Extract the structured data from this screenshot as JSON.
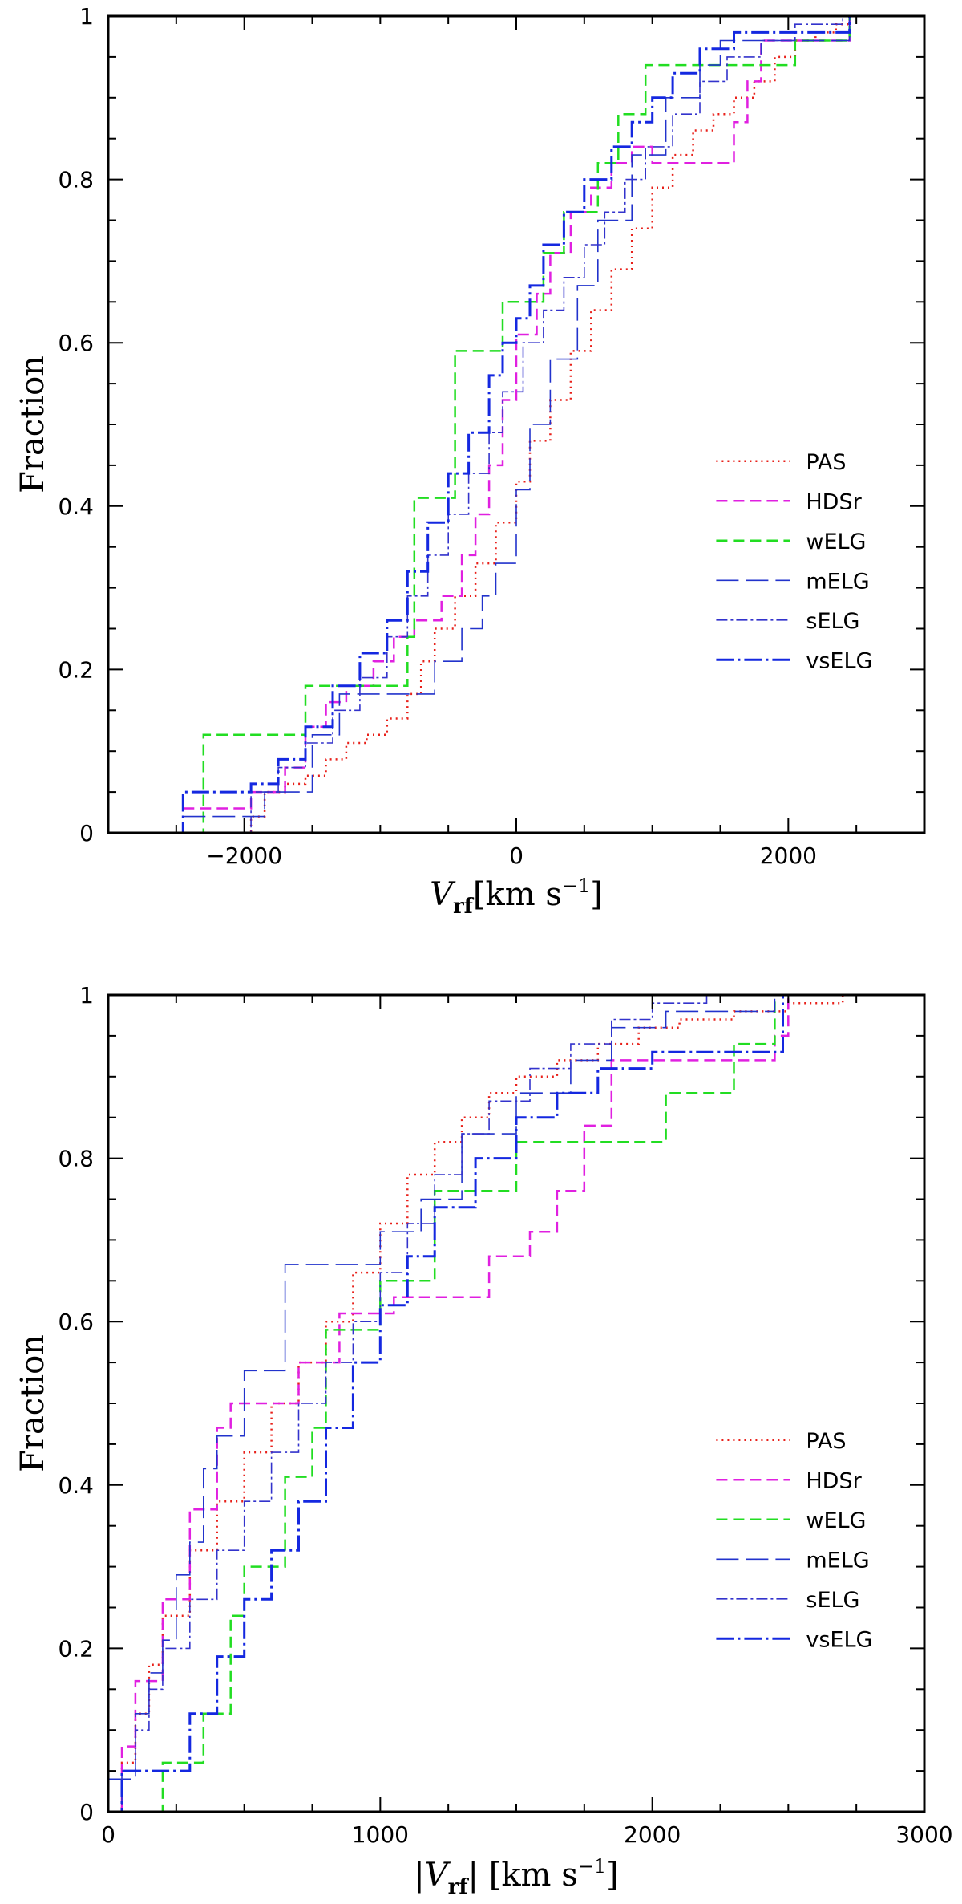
{
  "chart_data": [
    {
      "type": "line",
      "subtype": "cumulative-step",
      "title": "",
      "xlabel": {
        "main": "V",
        "sub": "rf",
        "unit": "[km s",
        "sup": "−1",
        "close": "]"
      },
      "ylabel": "Fraction",
      "xlim": [
        -3000,
        3000
      ],
      "ylim": [
        0,
        1
      ],
      "xticks": [
        {
          "v": -2000,
          "label": "−2000"
        },
        {
          "v": 0,
          "label": "0"
        },
        {
          "v": 2000,
          "label": "2000"
        }
      ],
      "yticks": [
        {
          "v": 0,
          "label": "0"
        },
        {
          "v": 0.2,
          "label": "0.2"
        },
        {
          "v": 0.4,
          "label": "0.4"
        },
        {
          "v": 0.6,
          "label": "0.6"
        },
        {
          "v": 0.8,
          "label": "0.8"
        },
        {
          "v": 1,
          "label": "1"
        }
      ],
      "legend_position": "right-middle",
      "series": [
        {
          "name": "PAS",
          "color": "#e8201a",
          "dash": "2,5",
          "width": 2.5,
          "x": [
            -2150,
            -1950,
            -1850,
            -1700,
            -1550,
            -1400,
            -1250,
            -1100,
            -950,
            -800,
            -700,
            -600,
            -450,
            -300,
            -150,
            0,
            100,
            250,
            400,
            550,
            700,
            850,
            1000,
            1150,
            1300,
            1450,
            1600,
            1750,
            1900,
            2050,
            2200,
            2350,
            2450
          ],
          "y": [
            0.0,
            0.02,
            0.05,
            0.06,
            0.07,
            0.09,
            0.11,
            0.12,
            0.14,
            0.17,
            0.21,
            0.25,
            0.29,
            0.33,
            0.38,
            0.43,
            0.48,
            0.53,
            0.59,
            0.64,
            0.69,
            0.74,
            0.79,
            0.83,
            0.86,
            0.88,
            0.9,
            0.92,
            0.95,
            0.97,
            0.98,
            0.99,
            1.0
          ]
        },
        {
          "name": "HDSr",
          "color": "#e020e0",
          "dash": "14,7",
          "width": 2.5,
          "x": [
            -2450,
            -1950,
            -1700,
            -1550,
            -1400,
            -1250,
            -1050,
            -900,
            -750,
            -550,
            -400,
            -300,
            -200,
            -100,
            0,
            150,
            250,
            400,
            550,
            700,
            850,
            1000,
            1600,
            1700,
            1800,
            2450
          ],
          "y": [
            0.03,
            0.05,
            0.08,
            0.13,
            0.16,
            0.18,
            0.21,
            0.24,
            0.26,
            0.29,
            0.34,
            0.39,
            0.45,
            0.53,
            0.61,
            0.66,
            0.71,
            0.76,
            0.79,
            0.82,
            0.84,
            0.82,
            0.87,
            0.92,
            0.97,
            1.0
          ]
        },
        {
          "name": "wELG",
          "color": "#22dd22",
          "dash": "14,7",
          "width": 2.5,
          "x": [
            -2350,
            -2300,
            -1550,
            -800,
            -750,
            -450,
            -100,
            200,
            350,
            600,
            750,
            950,
            1350,
            1700,
            2050,
            2450
          ],
          "y": [
            0.0,
            0.12,
            0.18,
            0.24,
            0.41,
            0.59,
            0.65,
            0.71,
            0.76,
            0.82,
            0.88,
            0.94,
            0.94,
            0.94,
            0.97,
            1.0
          ]
        },
        {
          "name": "mELG",
          "color": "#2233cc",
          "dash": "28,9",
          "width": 1.6,
          "x": [
            -2450,
            -1850,
            -1500,
            -1300,
            -800,
            -600,
            -400,
            -250,
            -150,
            0,
            100,
            250,
            450,
            600,
            850,
            1100,
            1350,
            1500,
            2450
          ],
          "y": [
            0.02,
            0.05,
            0.12,
            0.17,
            0.17,
            0.21,
            0.25,
            0.29,
            0.33,
            0.42,
            0.5,
            0.58,
            0.67,
            0.75,
            0.83,
            0.9,
            0.94,
            0.97,
            1.0
          ]
        },
        {
          "name": "sELG",
          "color": "#3333cc",
          "dash": "14,4,3,4",
          "width": 1.6,
          "x": [
            -2500,
            -1950,
            -1750,
            -1550,
            -1350,
            -1150,
            -950,
            -800,
            -650,
            -500,
            -350,
            -200,
            -100,
            50,
            200,
            350,
            500,
            650,
            800,
            950,
            1150,
            1350,
            1550,
            1800,
            2050,
            2400
          ],
          "y": [
            0.0,
            0.05,
            0.08,
            0.11,
            0.15,
            0.19,
            0.24,
            0.29,
            0.34,
            0.39,
            0.44,
            0.49,
            0.54,
            0.6,
            0.64,
            0.68,
            0.72,
            0.76,
            0.8,
            0.84,
            0.88,
            0.92,
            0.95,
            0.97,
            0.99,
            1.0
          ]
        },
        {
          "name": "vsELG",
          "color": "#1428e0",
          "dash": "22,5,3,5",
          "width": 3,
          "x": [
            -2500,
            -2450,
            -1950,
            -1750,
            -1550,
            -1350,
            -1150,
            -950,
            -800,
            -650,
            -500,
            -350,
            -200,
            -100,
            0,
            100,
            200,
            350,
            500,
            700,
            850,
            1000,
            1150,
            1350,
            1600,
            2000,
            2450
          ],
          "y": [
            0.0,
            0.05,
            0.06,
            0.09,
            0.13,
            0.18,
            0.22,
            0.26,
            0.32,
            0.38,
            0.44,
            0.49,
            0.56,
            0.6,
            0.63,
            0.67,
            0.72,
            0.76,
            0.8,
            0.84,
            0.87,
            0.9,
            0.93,
            0.96,
            0.98,
            0.98,
            1.0
          ]
        }
      ]
    },
    {
      "type": "line",
      "subtype": "cumulative-step",
      "title": "",
      "xlabel": {
        "main": "|V",
        "sub": "rf",
        "unit": "| [km s",
        "sup": "−1",
        "close": "]"
      },
      "ylabel": "Fraction",
      "xlim": [
        0,
        3000
      ],
      "ylim": [
        0,
        1
      ],
      "xticks": [
        {
          "v": 0,
          "label": "0"
        },
        {
          "v": 1000,
          "label": "1000"
        },
        {
          "v": 2000,
          "label": "2000"
        },
        {
          "v": 3000,
          "label": "3000"
        }
      ],
      "yticks": [
        {
          "v": 0,
          "label": "0"
        },
        {
          "v": 0.2,
          "label": "0.2"
        },
        {
          "v": 0.4,
          "label": "0.4"
        },
        {
          "v": 0.6,
          "label": "0.6"
        },
        {
          "v": 0.8,
          "label": "0.8"
        },
        {
          "v": 1,
          "label": "1"
        }
      ],
      "legend_position": "right-middle",
      "series": [
        {
          "name": "PAS",
          "color": "#e8201a",
          "dash": "2,5",
          "width": 2.5,
          "x": [
            0,
            50,
            100,
            150,
            200,
            300,
            400,
            500,
            600,
            700,
            800,
            900,
            1000,
            1100,
            1200,
            1300,
            1400,
            1500,
            1650,
            1800,
            1950,
            2100,
            2300,
            2500,
            2700
          ],
          "y": [
            0.0,
            0.06,
            0.12,
            0.18,
            0.24,
            0.32,
            0.38,
            0.44,
            0.5,
            0.55,
            0.6,
            0.66,
            0.72,
            0.78,
            0.82,
            0.85,
            0.88,
            0.9,
            0.92,
            0.94,
            0.96,
            0.97,
            0.98,
            0.99,
            1.0
          ]
        },
        {
          "name": "HDSr",
          "color": "#e020e0",
          "dash": "14,7",
          "width": 2.5,
          "x": [
            0,
            50,
            100,
            200,
            300,
            400,
            450,
            700,
            850,
            1050,
            1200,
            1400,
            1550,
            1650,
            1750,
            1850,
            2450,
            2500
          ],
          "y": [
            0.0,
            0.08,
            0.16,
            0.26,
            0.37,
            0.47,
            0.5,
            0.55,
            0.61,
            0.63,
            0.63,
            0.68,
            0.71,
            0.76,
            0.84,
            0.92,
            0.95,
            1.0
          ]
        },
        {
          "name": "wELG",
          "color": "#22dd22",
          "dash": "14,7",
          "width": 2.5,
          "x": [
            0,
            200,
            350,
            450,
            500,
            650,
            750,
            800,
            1000,
            1200,
            1500,
            1750,
            2050,
            2300,
            2450
          ],
          "y": [
            0.0,
            0.06,
            0.12,
            0.24,
            0.3,
            0.41,
            0.47,
            0.59,
            0.65,
            0.76,
            0.82,
            0.82,
            0.88,
            0.94,
            1.0
          ]
        },
        {
          "name": "mELG",
          "color": "#2233cc",
          "dash": "28,9",
          "width": 1.6,
          "x": [
            0,
            100,
            150,
            200,
            250,
            300,
            350,
            400,
            500,
            650,
            800,
            1000,
            1150,
            1300,
            1500,
            1700,
            1850,
            2050,
            2450
          ],
          "y": [
            0.04,
            0.12,
            0.17,
            0.21,
            0.29,
            0.33,
            0.42,
            0.46,
            0.54,
            0.67,
            0.67,
            0.71,
            0.75,
            0.83,
            0.88,
            0.92,
            0.96,
            0.98,
            1.0
          ]
        },
        {
          "name": "sELG",
          "color": "#3333cc",
          "dash": "14,4,3,4",
          "width": 1.6,
          "x": [
            0,
            50,
            100,
            150,
            200,
            300,
            400,
            500,
            600,
            700,
            800,
            900,
            1000,
            1100,
            1200,
            1300,
            1400,
            1550,
            1700,
            1850,
            2000,
            2200
          ],
          "y": [
            0.0,
            0.05,
            0.1,
            0.15,
            0.2,
            0.26,
            0.32,
            0.38,
            0.44,
            0.5,
            0.55,
            0.6,
            0.66,
            0.72,
            0.78,
            0.83,
            0.87,
            0.91,
            0.94,
            0.97,
            0.99,
            1.0
          ]
        },
        {
          "name": "vsELG",
          "color": "#1428e0",
          "dash": "22,5,3,5",
          "width": 3,
          "x": [
            0,
            50,
            200,
            300,
            400,
            500,
            600,
            700,
            800,
            900,
            1000,
            1100,
            1200,
            1350,
            1500,
            1650,
            1800,
            2000,
            2300,
            2450,
            2480
          ],
          "y": [
            0.0,
            0.05,
            0.05,
            0.12,
            0.19,
            0.26,
            0.32,
            0.38,
            0.47,
            0.55,
            0.62,
            0.68,
            0.74,
            0.8,
            0.85,
            0.88,
            0.91,
            0.93,
            0.93,
            0.93,
            1.0
          ]
        }
      ]
    }
  ]
}
